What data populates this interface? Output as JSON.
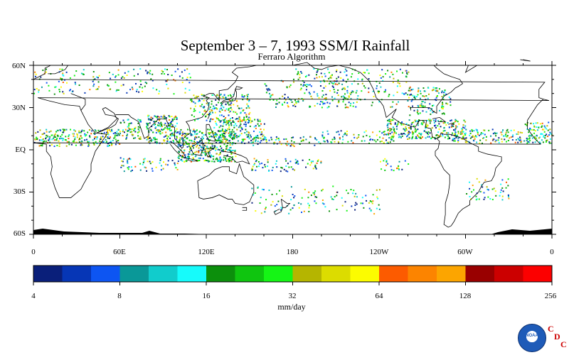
{
  "title": "September 3 – 7, 1993 SSM/I Rainfall",
  "subtitle": "Ferraro Algorithm",
  "lat_ticks": [
    "60N",
    "30N",
    "EQ",
    "30S",
    "60S"
  ],
  "lon_ticks": [
    "0",
    "60E",
    "120E",
    "180",
    "120W",
    "60W",
    "0"
  ],
  "colorbar": {
    "colors": [
      "#0a1f7a",
      "#0636b6",
      "#0d55f2",
      "#0a9898",
      "#11cccc",
      "#16fbfb",
      "#0c8f0c",
      "#0fc50f",
      "#15f515",
      "#b5b500",
      "#dcdc00",
      "#fcfc00",
      "#fc5b00",
      "#fc8400",
      "#fca500",
      "#990000",
      "#cc0000",
      "#fc0000"
    ],
    "tick_labels": [
      "4",
      "8",
      "16",
      "32",
      "64",
      "128",
      "256"
    ],
    "units": "mm/day"
  },
  "logo": {
    "agency": "NOAA",
    "cdc_letters": [
      "C",
      "D",
      "C"
    ]
  }
}
